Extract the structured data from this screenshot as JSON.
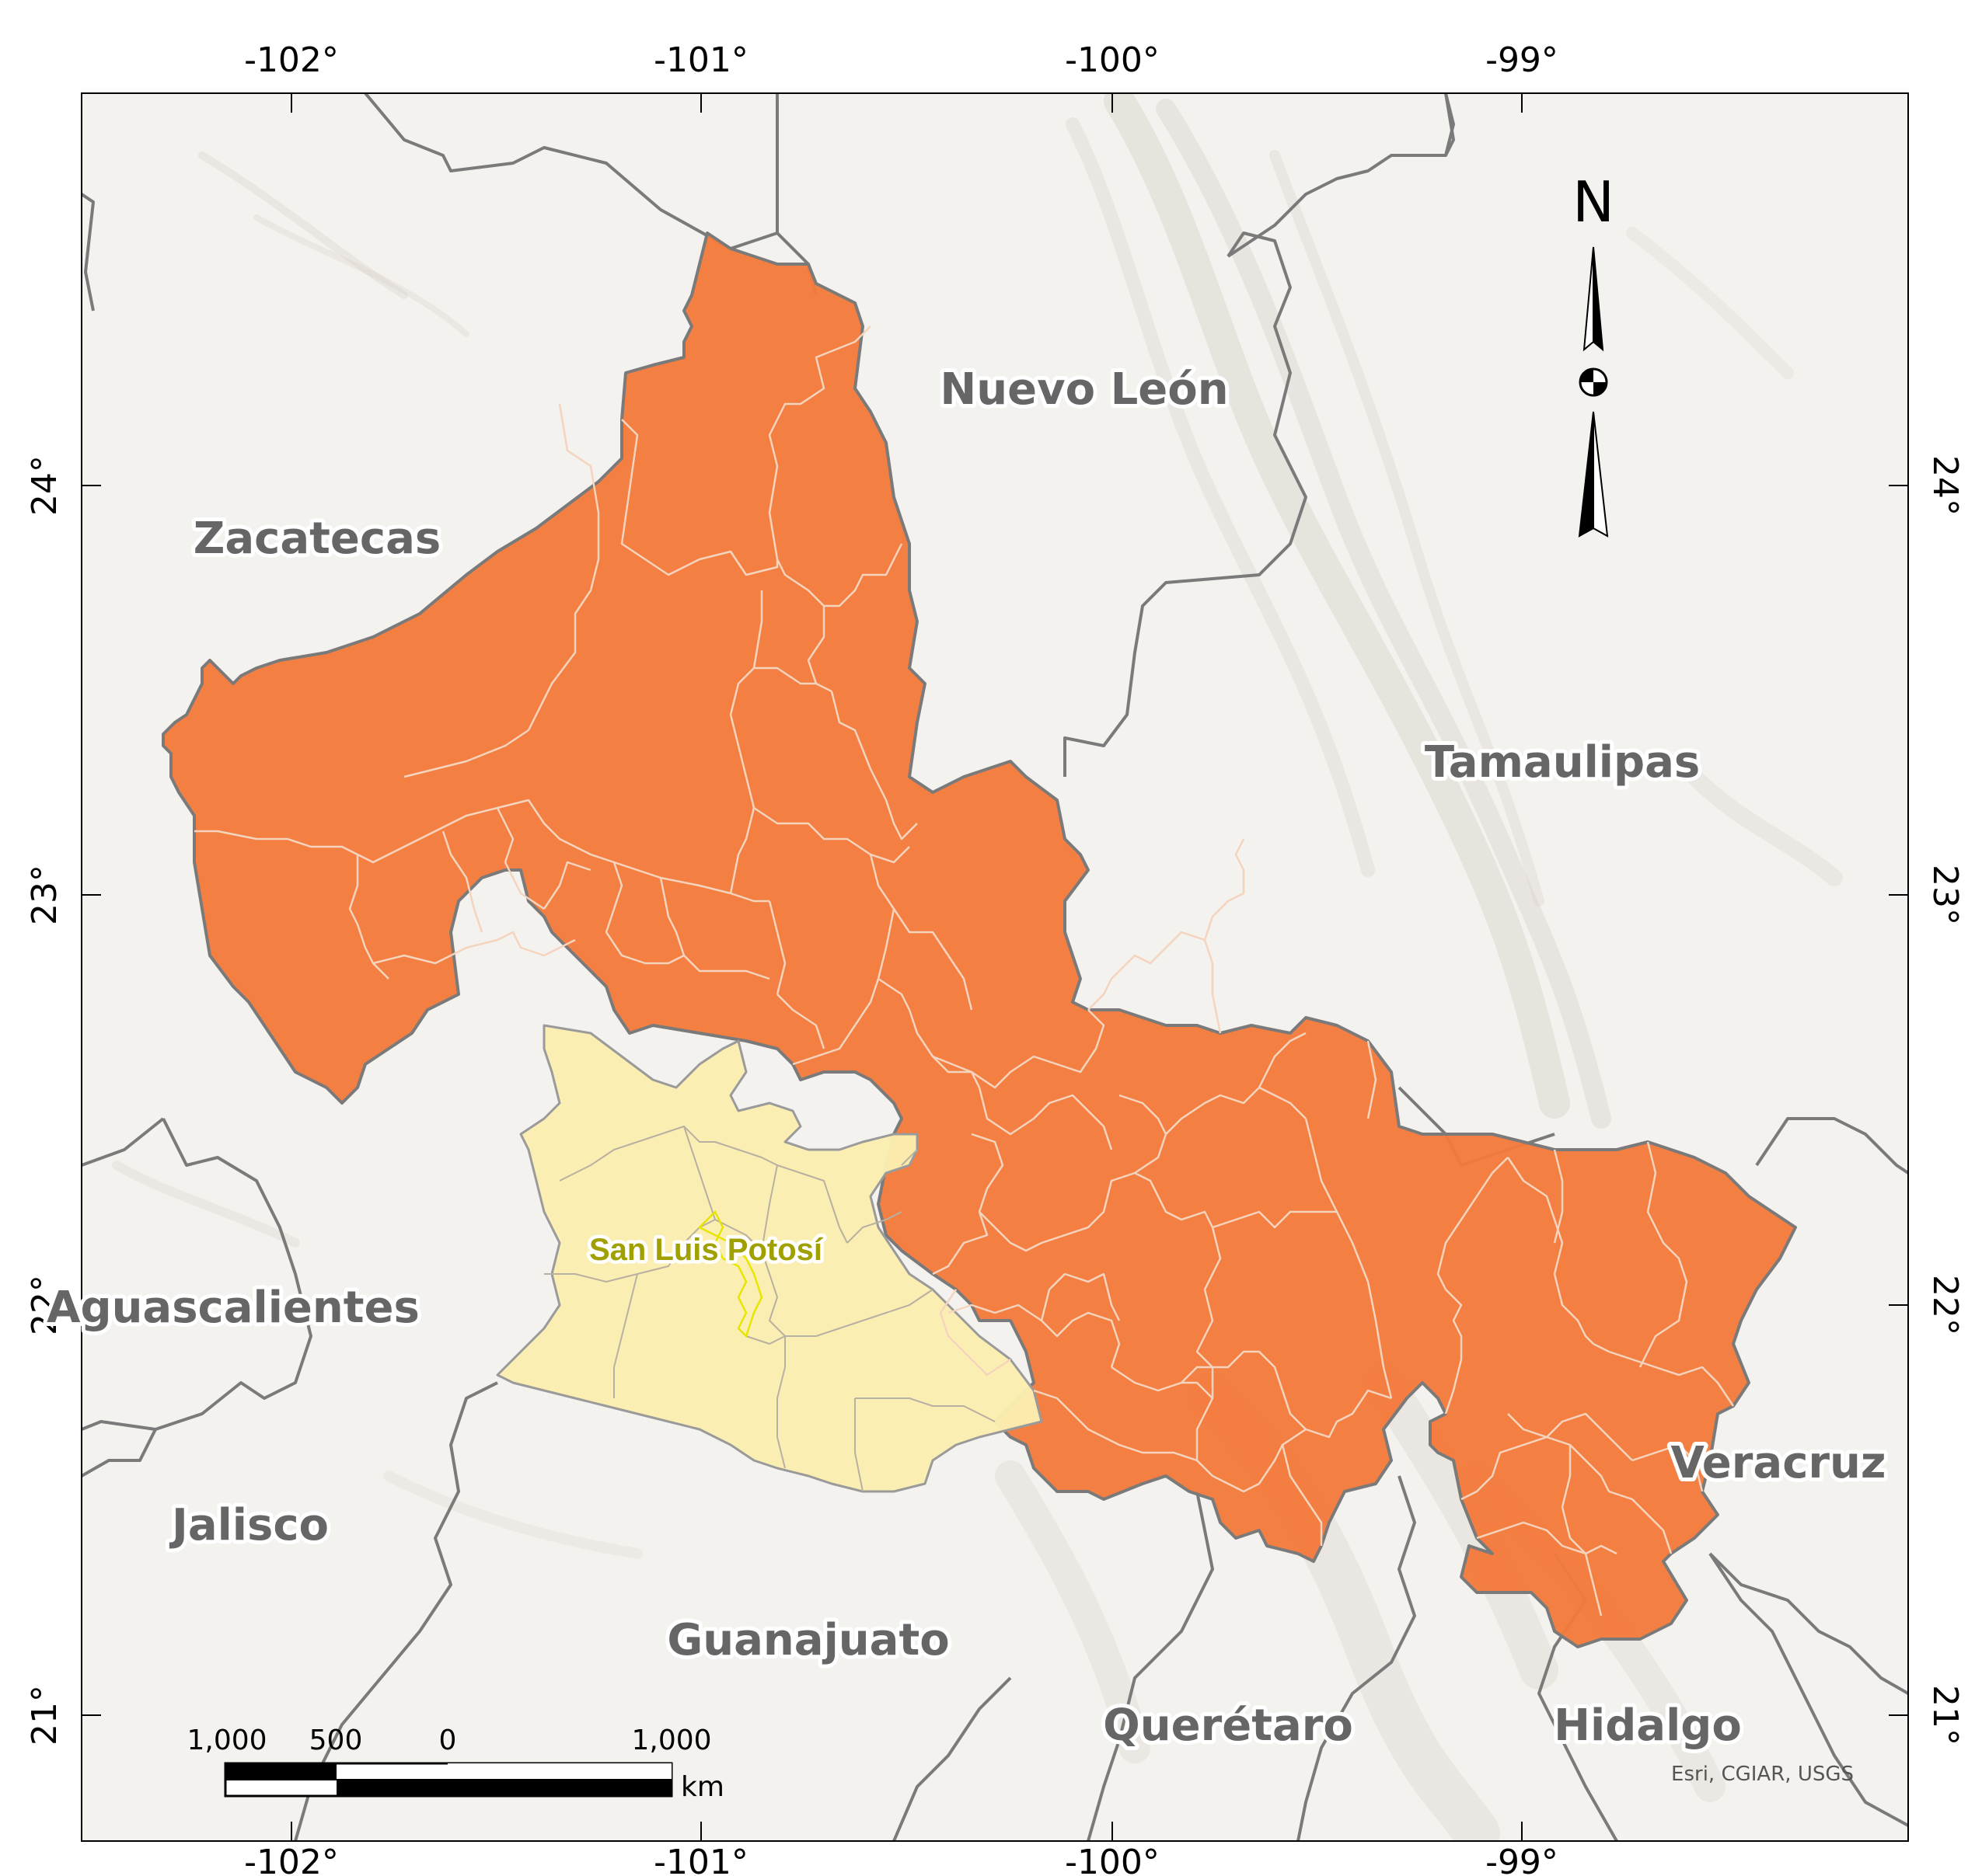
{
  "map": {
    "states": [
      {
        "id": "zacatecas",
        "name": "Zacatecas"
      },
      {
        "id": "nuevo-leon",
        "name": "Nuevo León"
      },
      {
        "id": "tamaulipas",
        "name": "Tamaulipas"
      },
      {
        "id": "aguascalientes",
        "name": "Aguascalientes"
      },
      {
        "id": "jalisco",
        "name": "Jalisco"
      },
      {
        "id": "guanajuato",
        "name": "Guanajuato"
      },
      {
        "id": "queretaro",
        "name": "Querétaro"
      },
      {
        "id": "hidalgo",
        "name": "Hidalgo"
      },
      {
        "id": "veracruz",
        "name": "Veracruz"
      }
    ],
    "focus_label": "San Luis Potosí",
    "graticule": {
      "longitudes": [
        "-102°",
        "-101°",
        "-100°",
        "-99°"
      ],
      "latitudes": [
        "24°",
        "23°",
        "22°",
        "21°"
      ]
    },
    "north_arrow": {
      "label": "N"
    },
    "scale_bar": {
      "labels": [
        "1,000",
        "500",
        "0",
        "1,000"
      ],
      "unit": "km"
    },
    "attribution": "Esri, CGIAR, USGS",
    "colors": {
      "highlight_region": "#f47a3a",
      "focus_region": "#fbedb0",
      "state_border": "#7a7a7a",
      "municipal_border": "#f4d0b8",
      "basemap": "#f3f1ee",
      "relief": "#d8d3cc"
    }
  }
}
